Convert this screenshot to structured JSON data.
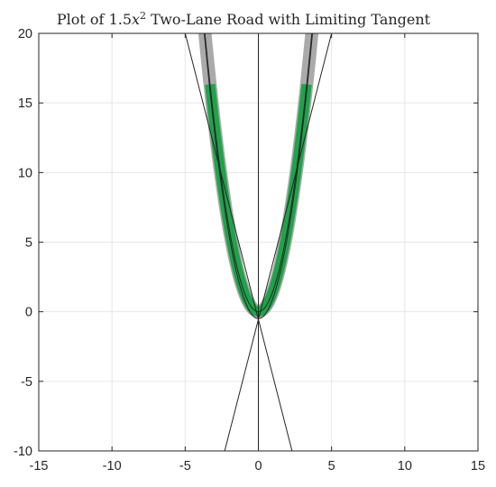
{
  "chart_data": {
    "type": "line",
    "title": {
      "prefix": "Plot of 1.5",
      "variable": "x",
      "exponent": "2",
      "suffix": " Two-Lane Road with Limiting Tangent"
    },
    "xlabel": "",
    "ylabel": "",
    "xlim": [
      -15,
      15
    ],
    "ylim": [
      -10,
      20
    ],
    "xticks": [
      -15,
      -10,
      -5,
      0,
      5,
      10,
      15
    ],
    "yticks": [
      -10,
      -5,
      0,
      5,
      10,
      15,
      20
    ],
    "xtick_labels": [
      "-15",
      "-10",
      "-5",
      "0",
      "5",
      "10",
      "15"
    ],
    "ytick_labels": [
      "-10",
      "-5",
      "0",
      "5",
      "10",
      "15",
      "20"
    ],
    "grid": true,
    "series": [
      {
        "kind": "band",
        "color": "#aaaaaa",
        "center": "y = 1.5x^2",
        "half_width": 0.45,
        "x_range": [
          -3.75,
          3.75
        ]
      },
      {
        "kind": "band",
        "color": "#1fa34a",
        "center": "y = 1.5x^2",
        "half_width": 0.35,
        "x_range": [
          -3.3,
          3.3
        ]
      },
      {
        "kind": "curve",
        "color": "#262626",
        "expr": "y = 1.5x^2 - 0.5",
        "x_range": [
          -3.7,
          3.7
        ]
      },
      {
        "kind": "curve",
        "color": "#262626",
        "expr": "y = 1.5x^2",
        "x_range": [
          -3.7,
          3.7
        ]
      },
      {
        "kind": "tangent",
        "color": "#262626",
        "points": [
          [
            -5,
            20
          ],
          [
            2.3,
            -10
          ]
        ]
      },
      {
        "kind": "tangent",
        "color": "#262626",
        "points": [
          [
            5,
            20
          ],
          [
            -2.3,
            -10
          ]
        ]
      },
      {
        "kind": "axis-line",
        "color": "#262626",
        "points": [
          [
            0,
            -10
          ],
          [
            0,
            20
          ]
        ]
      }
    ],
    "colors": {
      "road_outer": "#aaaaaa",
      "road_inner": "#1fa34a",
      "lines": "#262626",
      "grid": "#e6e6e6"
    }
  }
}
